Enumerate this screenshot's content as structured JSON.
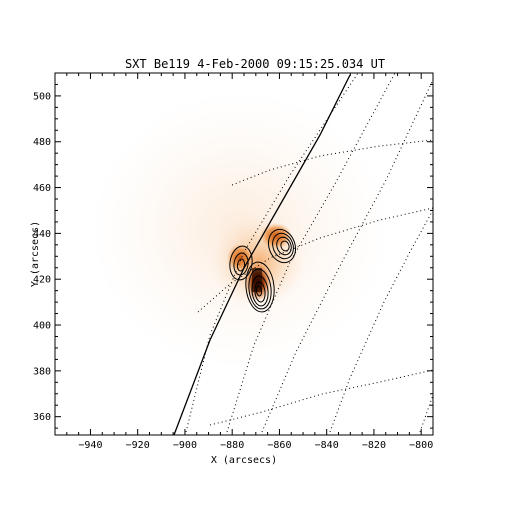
{
  "figure": {
    "title": "SXT Be119  4-Feb-2000 09:15:25.034 UT",
    "instrument": "SXT",
    "filter": "Be119",
    "date": "4-Feb-2000",
    "time": "09:15:25.034 UT",
    "xlabel": "X (arcsecs)",
    "ylabel": "Y (arcsecs)",
    "xlim": [
      -955,
      -795
    ],
    "ylim": [
      352,
      510
    ],
    "x_ticks": [
      -940,
      -920,
      -900,
      -880,
      -860,
      -840,
      -820,
      -800
    ],
    "x_tick_labels": [
      "−940",
      "−920",
      "−900",
      "−880",
      "−860",
      "−840",
      "−820",
      "−800"
    ],
    "y_ticks": [
      360,
      380,
      400,
      420,
      440,
      460,
      480,
      500
    ],
    "y_tick_labels": [
      "360",
      "380",
      "400",
      "420",
      "440",
      "460",
      "480",
      "500"
    ],
    "colormap_colors": [
      "#ffffff",
      "#f6a25a",
      "#c04a08",
      "#2a0a00"
    ],
    "limb_color": "#000000",
    "grid_style": "dotted"
  }
}
